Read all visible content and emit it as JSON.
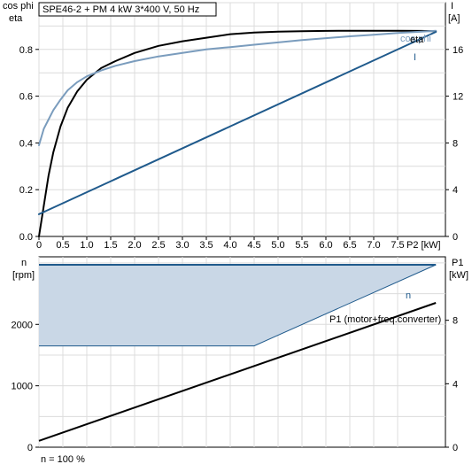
{
  "header": {
    "title": "SPE46-2 + PM   4 kW   3*400 V, 50 Hz"
  },
  "footer": {
    "note": "n = 100 %"
  },
  "colors": {
    "black": "#000000",
    "dark_blue": "#1f5a8c",
    "light_blue": "#7a9cbd",
    "fill_blue": "#c9d7e6",
    "grid": "#dcdcdc"
  },
  "chart_data": [
    {
      "type": "line",
      "ylabel_left": [
        "cos phi",
        "eta"
      ],
      "ylabel_right": [
        "I",
        "[A]"
      ],
      "xlabel": "P2 [kW]",
      "xlim": [
        0,
        8.5
      ],
      "ylim": [
        0,
        1.0
      ],
      "ylim_right": [
        0,
        20
      ],
      "x_ticks": [
        0,
        0.5,
        1.0,
        1.5,
        2.0,
        2.5,
        3.0,
        3.5,
        4.0,
        4.5,
        5.0,
        5.5,
        6.0,
        6.5,
        7.0,
        7.5
      ],
      "x_tick_labels": [
        "0",
        "0.5",
        "1.0",
        "1.5",
        "2.0",
        "2.5",
        "3.0",
        "3.5",
        "4.0",
        "4.5",
        "5.0",
        "5.5",
        "6.0",
        "6.5",
        "7.0",
        "7.5"
      ],
      "y_ticks": [
        0,
        0.2,
        0.4,
        0.6,
        0.8
      ],
      "y_tick_labels": [
        "0.0",
        "0.2",
        "0.4",
        "0.6",
        "0.8"
      ],
      "y_ticks_right": [
        0,
        4,
        8,
        12,
        16
      ],
      "y_tick_labels_right": [
        "0",
        "4",
        "8",
        "12",
        "16"
      ],
      "grid": true,
      "series": [
        {
          "name": "eta",
          "axis": "left",
          "color": "#000000",
          "x": [
            0,
            0.1,
            0.2,
            0.3,
            0.45,
            0.6,
            0.8,
            1.0,
            1.3,
            1.6,
            2.0,
            2.5,
            3.0,
            3.5,
            4.0,
            4.5,
            5.0,
            5.5,
            6.0,
            6.5,
            7.0,
            7.5,
            8.0,
            8.3
          ],
          "y": [
            0,
            0.13,
            0.26,
            0.36,
            0.47,
            0.55,
            0.62,
            0.67,
            0.72,
            0.75,
            0.785,
            0.815,
            0.835,
            0.85,
            0.865,
            0.872,
            0.876,
            0.878,
            0.879,
            0.88,
            0.88,
            0.88,
            0.879,
            0.878
          ]
        },
        {
          "name": "cos phi",
          "axis": "left",
          "color": "#7a9cbd",
          "x": [
            0,
            0.1,
            0.2,
            0.3,
            0.45,
            0.6,
            0.8,
            1.0,
            1.3,
            1.6,
            2.0,
            2.5,
            3.0,
            3.5,
            4.0,
            4.5,
            5.0,
            5.5,
            6.0,
            6.5,
            7.0,
            7.5,
            8.0,
            8.3
          ],
          "y": [
            0.39,
            0.46,
            0.5,
            0.54,
            0.585,
            0.625,
            0.66,
            0.685,
            0.71,
            0.73,
            0.75,
            0.77,
            0.785,
            0.8,
            0.81,
            0.82,
            0.83,
            0.84,
            0.848,
            0.856,
            0.863,
            0.87,
            0.876,
            0.88
          ]
        },
        {
          "name": "I",
          "axis": "right",
          "color": "#1f5a8c",
          "x": [
            0,
            8.3
          ],
          "y": [
            1.9,
            17.5
          ]
        }
      ]
    },
    {
      "type": "line",
      "ylabel_left": [
        "n",
        "[rpm]"
      ],
      "ylabel_right": [
        "P1",
        "[kW]"
      ],
      "xlim": [
        0,
        8.5
      ],
      "ylim": [
        0,
        3100
      ],
      "ylim_right": [
        0,
        12
      ],
      "y_ticks": [
        0,
        1000,
        2000
      ],
      "y_tick_labels": [
        "0",
        "1000",
        "2000"
      ],
      "y_ticks_right": [
        0,
        4,
        8
      ],
      "y_tick_labels_right": [
        "0",
        "4",
        "8"
      ],
      "grid": true,
      "band": {
        "name": "n",
        "color": "#1f5a8c",
        "fill": "#c9d7e6",
        "upper": {
          "x": [
            0,
            8.3
          ],
          "y": [
            2970,
            2970
          ]
        },
        "lower": {
          "x": [
            0,
            4.5,
            8.3
          ],
          "y": [
            1650,
            1650,
            2970
          ]
        }
      },
      "series": [
        {
          "name": "P1 (motor+freq.converter)",
          "axis": "right",
          "color": "#000000",
          "x": [
            0,
            8.3
          ],
          "y": [
            0.4,
            9.1
          ]
        }
      ]
    }
  ]
}
